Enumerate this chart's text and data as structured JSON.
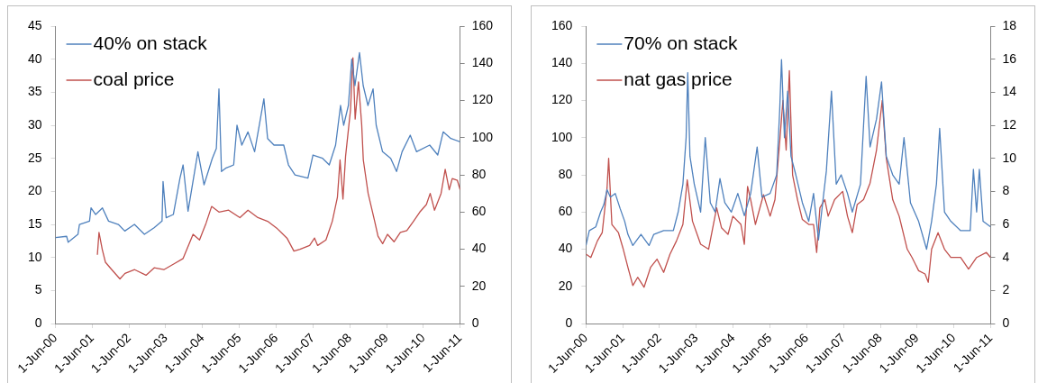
{
  "chart_data": [
    {
      "type": "line",
      "legend": "top left",
      "xlim": [
        "2000-06-01",
        "2011-06-01"
      ],
      "xticks": [
        {
          "value": "2000-06-01",
          "label": "1-Jun-00"
        },
        {
          "value": "2001-06-01",
          "label": "1-Jun-01"
        },
        {
          "value": "2002-06-01",
          "label": "1-Jun-02"
        },
        {
          "value": "2003-06-01",
          "label": "1-Jun-03"
        },
        {
          "value": "2004-06-01",
          "label": "1-Jun-04"
        },
        {
          "value": "2005-06-01",
          "label": "1-Jun-05"
        },
        {
          "value": "2006-06-01",
          "label": "1-Jun-06"
        },
        {
          "value": "2007-06-01",
          "label": "1-Jun-07"
        },
        {
          "value": "2008-06-01",
          "label": "1-Jun-08"
        },
        {
          "value": "2009-06-01",
          "label": "1-Jun-09"
        },
        {
          "value": "2010-06-01",
          "label": "1-Jun-10"
        },
        {
          "value": "2011-06-01",
          "label": "1-Jun-11"
        }
      ],
      "ylim": [
        0,
        45
      ],
      "yticks": [
        0,
        5,
        10,
        15,
        20,
        25,
        30,
        35,
        40,
        45
      ],
      "y2lim": [
        0,
        160
      ],
      "y2ticks": [
        0,
        20,
        40,
        60,
        80,
        100,
        120,
        140,
        160
      ],
      "series": [
        {
          "name": "40% on stack",
          "color": "#4f81bd",
          "x": [
            "2000-06-01",
            "2000-09-20",
            "2000-10-05",
            "2001-01-10",
            "2001-01-25",
            "2001-05-05",
            "2001-05-20",
            "2001-07-05",
            "2001-09-10",
            "2001-11-10",
            "2002-02-15",
            "2002-04-20",
            "2002-07-25",
            "2002-11-01",
            "2003-02-05",
            "2003-04-25",
            "2003-05-05",
            "2003-06-05",
            "2003-08-15",
            "2003-10-20",
            "2003-11-20",
            "2004-01-08",
            "2004-04-15",
            "2004-06-15",
            "2004-09-05",
            "2004-10-15",
            "2004-11-10",
            "2004-12-05",
            "2005-01-15",
            "2005-04-05",
            "2005-05-08",
            "2005-06-25",
            "2005-08-25",
            "2005-10-30",
            "2005-12-15",
            "2006-01-30",
            "2006-03-08",
            "2006-05-10",
            "2006-08-15",
            "2006-10-01",
            "2006-12-05",
            "2007-04-12",
            "2007-06-01",
            "2007-09-05",
            "2007-11-10",
            "2008-01-12",
            "2008-03-01",
            "2008-04-01",
            "2008-05-18",
            "2008-06-20",
            "2008-07-22",
            "2008-09-05",
            "2008-10-12",
            "2008-11-28",
            "2009-01-18",
            "2009-02-18",
            "2009-04-22",
            "2009-07-12",
            "2009-09-08",
            "2009-11-02",
            "2010-01-22",
            "2010-03-25",
            "2010-08-03",
            "2010-10-22",
            "2010-12-15",
            "2011-03-01",
            "2011-06-01"
          ],
          "values": [
            13,
            13.2,
            12.3,
            13.5,
            15,
            15.5,
            17.5,
            16.5,
            17.5,
            15.5,
            15,
            14,
            15,
            13.5,
            14.5,
            15.5,
            21.5,
            16,
            16.5,
            22,
            24,
            17,
            26,
            21,
            25,
            26.5,
            35.5,
            23,
            23.5,
            24,
            30,
            27,
            29,
            26,
            30,
            34,
            28,
            27,
            27,
            24,
            22.5,
            22,
            25.5,
            25,
            24,
            27,
            33,
            30,
            33,
            40,
            36,
            41,
            36,
            33,
            35.5,
            30,
            26,
            25,
            23,
            26,
            28.5,
            26,
            27,
            25.5,
            29,
            28,
            27.5
          ]
        },
        {
          "name": "coal price",
          "color": "#c0504d",
          "axis": "y2",
          "x": [
            "2001-07-22",
            "2001-08-07",
            "2001-09-08",
            "2001-10-10",
            "2001-12-12",
            "2002-03-03",
            "2002-04-22",
            "2002-07-27",
            "2002-11-17",
            "2003-02-06",
            "2003-05-13",
            "2003-08-18",
            "2003-11-20",
            "2004-02-27",
            "2004-05-01",
            "2004-07-05",
            "2004-08-29",
            "2004-11-10",
            "2005-02-14",
            "2005-06-06",
            "2005-08-25",
            "2005-12-01",
            "2006-03-08",
            "2006-06-13",
            "2006-09-16",
            "2006-11-24",
            "2007-01-23",
            "2007-04-29",
            "2007-06-17",
            "2007-07-18",
            "2007-10-08",
            "2007-12-10",
            "2008-01-30",
            "2008-02-25",
            "2008-03-25",
            "2008-04-20",
            "2008-06-08",
            "2008-07-02",
            "2008-07-24",
            "2008-08-26",
            "2008-09-27",
            "2008-10-13",
            "2008-11-30",
            "2009-02-03",
            "2009-03-08",
            "2009-04-23",
            "2009-06-10",
            "2009-08-14",
            "2009-10-16",
            "2009-12-19",
            "2010-02-23",
            "2010-04-27",
            "2010-07-01",
            "2010-08-08",
            "2010-09-20",
            "2010-11-24",
            "2011-01-04",
            "2011-02-13",
            "2011-03-15",
            "2011-05-05",
            "2011-06-01"
          ],
          "values": [
            37,
            49,
            40,
            33,
            29,
            24,
            27,
            29,
            26,
            30,
            29,
            32,
            35,
            48,
            45,
            54,
            63,
            60,
            61,
            57,
            61,
            57,
            55,
            51,
            46,
            39,
            40,
            42,
            46,
            42,
            45,
            55,
            68,
            88,
            67,
            90,
            115,
            143,
            110,
            130,
            107,
            88,
            70,
            55,
            47,
            43,
            48,
            44,
            49,
            50,
            55,
            60,
            64,
            70,
            61,
            70,
            83,
            72,
            78,
            77,
            72
          ]
        }
      ]
    },
    {
      "type": "line",
      "legend": "top left",
      "xlim": [
        "2000-06-01",
        "2011-06-01"
      ],
      "xticks": [
        {
          "value": "2000-06-01",
          "label": "1-Jun-00"
        },
        {
          "value": "2001-06-01",
          "label": "1-Jun-01"
        },
        {
          "value": "2002-06-01",
          "label": "1-Jun-02"
        },
        {
          "value": "2003-06-01",
          "label": "1-Jun-03"
        },
        {
          "value": "2004-06-01",
          "label": "1-Jun-04"
        },
        {
          "value": "2005-06-01",
          "label": "1-Jun-05"
        },
        {
          "value": "2006-06-01",
          "label": "1-Jun-06"
        },
        {
          "value": "2007-06-01",
          "label": "1-Jun-07"
        },
        {
          "value": "2008-06-01",
          "label": "1-Jun-08"
        },
        {
          "value": "2009-06-01",
          "label": "1-Jun-09"
        },
        {
          "value": "2010-06-01",
          "label": "1-Jun-10"
        },
        {
          "value": "2011-06-01",
          "label": "1-Jun-11"
        }
      ],
      "ylim": [
        0,
        160
      ],
      "yticks": [
        0,
        20,
        40,
        60,
        80,
        100,
        120,
        140,
        160
      ],
      "y2lim": [
        0,
        18
      ],
      "y2ticks": [
        0,
        2,
        4,
        6,
        8,
        10,
        12,
        14,
        16,
        18
      ],
      "series": [
        {
          "name": "70% on stack",
          "color": "#4f81bd",
          "x": [
            "2000-06-01",
            "2000-07-04",
            "2000-09-06",
            "2000-10-24",
            "2000-11-25",
            "2000-12-27",
            "2001-01-29",
            "2001-03-18",
            "2001-05-05",
            "2001-06-20",
            "2001-07-22",
            "2001-09-09",
            "2001-11-29",
            "2002-02-17",
            "2002-04-05",
            "2002-07-12",
            "2002-10-16",
            "2002-12-03",
            "2003-01-19",
            "2003-02-20",
            "2003-03-08",
            "2003-03-30",
            "2003-05-12",
            "2003-07-14",
            "2003-08-29",
            "2003-10-18",
            "2003-12-05",
            "2004-01-22",
            "2004-03-10",
            "2004-05-14",
            "2004-07-17",
            "2004-09-20",
            "2004-11-22",
            "2005-01-25",
            "2005-03-14",
            "2005-06-03",
            "2005-08-07",
            "2005-09-06",
            "2005-09-24",
            "2005-10-23",
            "2005-11-24",
            "2005-12-27",
            "2006-02-13",
            "2006-04-19",
            "2006-06-21",
            "2006-08-08",
            "2006-09-26",
            "2006-11-13",
            "2006-12-13",
            "2007-02-02",
            "2007-03-21",
            "2007-05-09",
            "2007-07-11",
            "2007-08-28",
            "2007-11-17",
            "2008-01-12",
            "2008-02-20",
            "2008-04-24",
            "2008-06-13",
            "2008-07-30",
            "2008-10-02",
            "2008-12-05",
            "2009-01-22",
            "2009-03-27",
            "2009-06-16",
            "2009-09-03",
            "2009-10-23",
            "2009-12-10",
            "2010-01-11",
            "2010-02-28",
            "2010-05-02",
            "2010-08-07",
            "2010-11-10",
            "2010-12-12",
            "2011-01-13",
            "2011-02-09",
            "2011-03-18",
            "2011-06-01"
          ],
          "values": [
            42,
            50,
            52,
            60,
            64,
            72,
            68,
            70,
            62,
            55,
            48,
            42,
            48,
            42,
            48,
            50,
            50,
            60,
            75,
            100,
            135,
            90,
            75,
            60,
            100,
            65,
            60,
            78,
            65,
            60,
            70,
            58,
            70,
            95,
            68,
            70,
            80,
            115,
            142,
            100,
            125,
            90,
            80,
            65,
            55,
            70,
            45,
            68,
            82,
            125,
            75,
            80,
            70,
            60,
            75,
            133,
            95,
            110,
            130,
            90,
            80,
            75,
            100,
            65,
            55,
            40,
            55,
            75,
            105,
            60,
            55,
            50,
            50,
            83,
            60,
            83,
            55,
            52
          ]
        },
        {
          "name": "nat gas price",
          "color": "#c0504d",
          "axis": "y2",
          "x": [
            "2000-06-01",
            "2000-07-19",
            "2000-09-22",
            "2000-11-09",
            "2000-12-27",
            "2001-01-12",
            "2001-02-13",
            "2001-04-19",
            "2001-06-06",
            "2001-07-22",
            "2001-09-09",
            "2001-10-27",
            "2001-12-29",
            "2002-03-04",
            "2002-05-07",
            "2002-07-12",
            "2002-09-13",
            "2002-11-16",
            "2003-01-19",
            "2003-03-03",
            "2003-04-24",
            "2003-07-14",
            "2003-10-01",
            "2003-12-20",
            "2004-02-06",
            "2004-04-11",
            "2004-05-29",
            "2004-08-17",
            "2004-09-20",
            "2004-10-22",
            "2004-11-22",
            "2005-01-08",
            "2005-03-29",
            "2005-06-03",
            "2005-07-21",
            "2005-09-06",
            "2005-10-08",
            "2005-11-09",
            "2005-12-11",
            "2006-01-12",
            "2006-03-02",
            "2006-04-19",
            "2006-06-21",
            "2006-08-08",
            "2006-09-08",
            "2006-10-10",
            "2006-11-28",
            "2006-12-31",
            "2007-03-05",
            "2007-05-24",
            "2007-07-11",
            "2007-08-28",
            "2007-10-15",
            "2007-12-17",
            "2008-02-20",
            "2008-04-24",
            "2008-06-20",
            "2008-07-30",
            "2008-10-02",
            "2008-12-05",
            "2009-02-23",
            "2009-04-12",
            "2009-06-16",
            "2009-08-19",
            "2009-09-20",
            "2009-10-23",
            "2009-12-26",
            "2010-02-28",
            "2010-05-02",
            "2010-08-07",
            "2010-10-25",
            "2011-01-13",
            "2011-04-20",
            "2011-06-01"
          ],
          "values": [
            4.2,
            4,
            5,
            5.5,
            8.2,
            10,
            6,
            5.5,
            4.5,
            3.4,
            2.3,
            2.8,
            2.2,
            3.4,
            3.9,
            3.1,
            4.2,
            5,
            6,
            8.7,
            6.2,
            4.8,
            4.5,
            7,
            5.8,
            5.4,
            6.5,
            6,
            4.8,
            8.3,
            7.5,
            6,
            7.8,
            6.5,
            7.5,
            11,
            13.5,
            10.5,
            15.3,
            9,
            7.5,
            6.3,
            6,
            6,
            4.3,
            7,
            7.5,
            6.5,
            7.5,
            8,
            6.5,
            5.5,
            7.2,
            7.5,
            8.5,
            10.5,
            13.5,
            10,
            7.5,
            6.5,
            4.5,
            4,
            3.2,
            3,
            2.5,
            4.5,
            5.5,
            4.5,
            4,
            4,
            3.3,
            4,
            4.3,
            4
          ]
        }
      ]
    }
  ]
}
